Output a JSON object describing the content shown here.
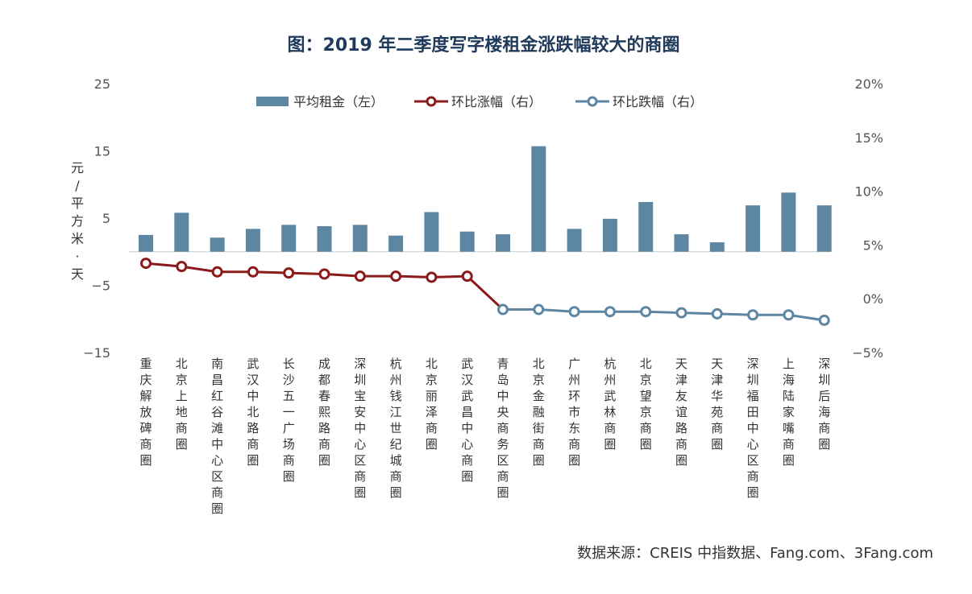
{
  "chart_data": {
    "type": "bar",
    "title": "图：2019 年二季度写字楼租金涨跌幅较大的商圈",
    "ylabel_left": "元/平方米·天",
    "source": "数据来源：CREIS 中指数据、Fang.com、3Fang.com",
    "legend_position": "top",
    "categories": [
      "重庆解放碑商圈",
      "北京上地商圈",
      "南昌红谷滩中心区商圈",
      "武汉中北路商圈",
      "长沙五一广场商圈",
      "成都春熙路商圈",
      "深圳宝安中心区商圈",
      "杭州钱江世纪城商圈",
      "北京丽泽商圈",
      "武汉武昌中心商圈",
      "青岛中央商务区商圈",
      "北京金融街商圈",
      "广州环市东商圈",
      "杭州武林商圈",
      "北京望京商圈",
      "天津友谊路商圈",
      "天津华苑商圈",
      "深圳福田中心区商圈",
      "上海陆家嘴商圈",
      "深圳后海商圈"
    ],
    "y_left": {
      "min": -15,
      "max": 25,
      "ticks": [
        "25",
        "15",
        "5",
        "−5",
        "−15"
      ]
    },
    "y_right": {
      "min": -5,
      "max": 20,
      "ticks": [
        "20%",
        "15%",
        "10%",
        "5%",
        "0%",
        "−5%"
      ]
    },
    "series": [
      {
        "name": "平均租金（左）",
        "type": "bar",
        "axis": "left",
        "color": "#5d86a3",
        "values": [
          2.5,
          5.8,
          2.1,
          3.4,
          4.0,
          3.8,
          4.0,
          2.4,
          5.9,
          3.0,
          2.6,
          15.7,
          3.4,
          4.9,
          7.4,
          2.6,
          1.4,
          6.9,
          8.8,
          6.9
        ]
      },
      {
        "name": "环比涨幅（右）",
        "type": "line",
        "axis": "right",
        "color": "#8b1a1a",
        "values": [
          3.3,
          3.0,
          2.5,
          2.5,
          2.4,
          2.3,
          2.1,
          2.1,
          2.0,
          2.1,
          null,
          null,
          null,
          null,
          null,
          null,
          null,
          null,
          null,
          null
        ]
      },
      {
        "name": "环比跌幅（右）",
        "type": "line",
        "axis": "right",
        "color": "#5d86a3",
        "values": [
          null,
          null,
          null,
          null,
          null,
          null,
          null,
          null,
          null,
          null,
          -1.0,
          -1.0,
          -1.2,
          -1.2,
          -1.2,
          -1.3,
          -1.4,
          -1.5,
          -1.5,
          -2.0
        ]
      }
    ]
  }
}
